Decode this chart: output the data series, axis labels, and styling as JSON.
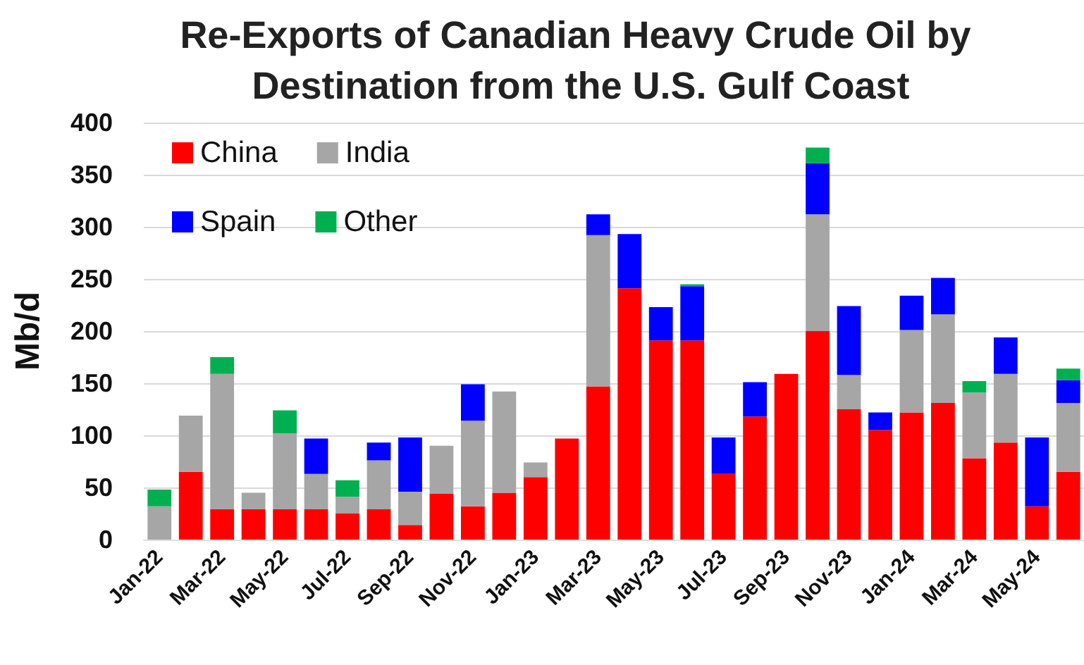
{
  "chart_data": {
    "type": "bar",
    "title": "Re-Exports of Canadian Heavy Crude Oil by Destination from the U.S. Gulf Coast",
    "ylabel": "Mb/d",
    "categories": [
      "Jan-22",
      null,
      "Mar-22",
      null,
      "May-22",
      null,
      "Jul-22",
      null,
      "Sep-22",
      null,
      "Nov-22",
      null,
      "Jan-23",
      null,
      "Mar-23",
      null,
      "May-23",
      null,
      "Jul-23",
      null,
      "Sep-23",
      null,
      "Nov-23",
      null,
      "Jan-24",
      null,
      "Mar-24",
      null,
      "May-24",
      null
    ],
    "series": [
      {
        "name": "China",
        "color": "#ff0000",
        "values": [
          null,
          65,
          29,
          29,
          29,
          29,
          25,
          29,
          14,
          44,
          32,
          45,
          60,
          97,
          147,
          241,
          191,
          191,
          63,
          118,
          159,
          200,
          125,
          105,
          122,
          131,
          78,
          93,
          32,
          65
        ]
      },
      {
        "name": "India",
        "color": "#a6a6a6",
        "values": [
          32,
          54,
          130,
          16,
          73,
          34,
          16,
          47,
          32,
          46,
          82,
          97,
          14,
          null,
          145,
          null,
          null,
          null,
          null,
          null,
          null,
          112,
          33,
          null,
          79,
          85,
          63,
          66,
          null,
          66
        ]
      },
      {
        "name": "Spain",
        "color": "#0000ff",
        "values": [
          null,
          null,
          null,
          null,
          null,
          34,
          null,
          17,
          52,
          null,
          35,
          null,
          null,
          null,
          20,
          52,
          32,
          52,
          35,
          33,
          null,
          49,
          66,
          17,
          33,
          35,
          null,
          35,
          66,
          22
        ]
      },
      {
        "name": "Other",
        "color": "#00b050",
        "values": [
          16,
          null,
          16,
          null,
          22,
          null,
          16,
          null,
          null,
          null,
          null,
          null,
          null,
          null,
          null,
          null,
          null,
          2,
          null,
          null,
          null,
          15,
          null,
          null,
          null,
          null,
          11,
          null,
          null,
          11
        ]
      }
    ],
    "stacked": true,
    "ylim": [
      0,
      400
    ],
    "yticks": [
      0,
      50,
      100,
      150,
      200,
      250,
      300,
      350,
      400
    ],
    "grid": "y",
    "legend": "top left"
  }
}
